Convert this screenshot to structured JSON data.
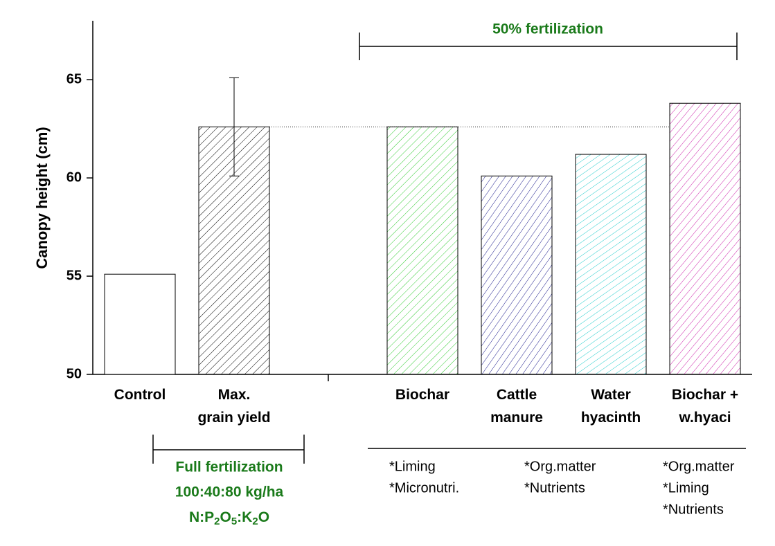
{
  "chart_data": {
    "type": "bar",
    "y_label": "Canopy height (cm)",
    "categories": [
      "Control",
      "Max.\ngrain yield",
      null,
      "Biochar",
      "Cattle\nmanure",
      "Water\nhyacinth",
      "Biochar +\nw.hyaci"
    ],
    "values": [
      55.1,
      62.6,
      null,
      62.6,
      60.1,
      61.2,
      63.8
    ],
    "errors": [
      null,
      2.5,
      null,
      null,
      null,
      null,
      null
    ],
    "colors": [
      null,
      "#000000",
      "#33cc33",
      "#1a1a8c",
      "#22cccc",
      "#cc22aa"
    ],
    "ylim": [
      50,
      68
    ],
    "yticks": [
      50,
      55,
      60,
      65
    ],
    "annotations": {
      "half": "50% fertilization",
      "full": [
        "Full fertilization",
        "100:40:80 kg/ha"
      ],
      "formula": [
        "N:P",
        "2",
        "O",
        "5",
        ":K",
        "2",
        "O"
      ],
      "notes": [
        [
          "*Liming",
          "*Micronutri."
        ],
        [
          "*Org.matter",
          "*Nutrients"
        ],
        [
          "*Org.matter",
          "*Liming",
          "*Nutrients"
        ]
      ]
    }
  }
}
